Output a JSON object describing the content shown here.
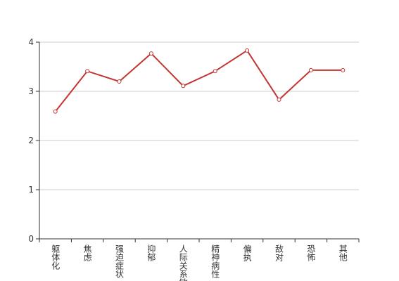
{
  "chart_data": {
    "type": "line",
    "categories": [
      "躯体化",
      "焦虑",
      "强迫症状",
      "抑郁",
      "人际关系敏感",
      "精神病性",
      "偏执",
      "敌对",
      "恐怖",
      "其他"
    ],
    "series": [
      {
        "color": "#c23531",
        "values": [
          2.59,
          3.41,
          3.2,
          3.77,
          3.11,
          3.41,
          3.83,
          2.83,
          3.43,
          3.43
        ]
      }
    ],
    "ylim": [
      0,
      4
    ],
    "yticks": [
      0,
      1,
      2,
      3,
      4
    ],
    "grid": true
  }
}
